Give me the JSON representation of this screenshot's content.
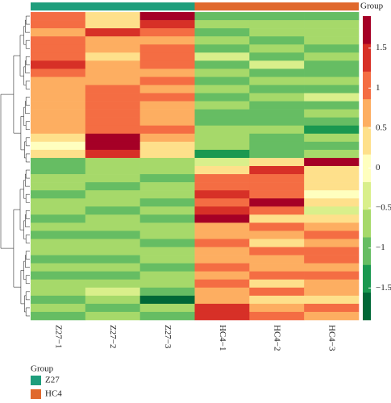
{
  "chart_data": {
    "type": "heatmap",
    "columns": [
      "Z27−1",
      "Z27−2",
      "Z27−3",
      "HC4−1",
      "HC4−2",
      "HC4−3"
    ],
    "values": [
      [
        0.9,
        0.3,
        1.8,
        -0.9,
        -0.9,
        -0.9
      ],
      [
        1.1,
        0.2,
        1.3,
        -0.6,
        -0.7,
        -0.7
      ],
      [
        0.8,
        1.4,
        1.0,
        -1.0,
        -0.6,
        -0.8
      ],
      [
        0.9,
        0.7,
        0.6,
        -0.7,
        -1.0,
        -0.6
      ],
      [
        1.2,
        0.8,
        0.9,
        -0.9,
        -0.8,
        -1.0
      ],
      [
        1.0,
        0.5,
        1.1,
        -0.5,
        -0.9,
        -0.7
      ],
      [
        1.5,
        0.7,
        1.0,
        -0.9,
        -0.5,
        -0.9
      ],
      [
        1.1,
        0.8,
        0.6,
        -0.8,
        -0.9,
        -1.0
      ],
      [
        0.7,
        0.7,
        1.1,
        -1.1,
        -0.7,
        -0.8
      ],
      [
        0.7,
        0.9,
        0.8,
        -0.8,
        -1.0,
        -0.9
      ],
      [
        0.6,
        1.0,
        1.2,
        -0.9,
        -0.8,
        -0.5
      ],
      [
        0.7,
        1.1,
        0.8,
        -0.7,
        -0.9,
        -1.1
      ],
      [
        0.6,
        0.9,
        0.7,
        -0.9,
        -1.0,
        -0.8
      ],
      [
        0.8,
        1.0,
        0.6,
        -1.0,
        -1.1,
        -0.9
      ],
      [
        0.7,
        0.9,
        0.9,
        -0.8,
        -0.8,
        -1.4
      ],
      [
        0.2,
        1.8,
        0.7,
        -0.7,
        -0.9,
        -0.8
      ],
      [
        0.1,
        1.8,
        0.3,
        -0.8,
        -1.0,
        -0.9
      ],
      [
        0.3,
        1.3,
        0.2,
        -1.3,
        -0.9,
        -0.7
      ],
      [
        -0.9,
        -0.8,
        -0.7,
        -0.3,
        0.2,
        1.6
      ],
      [
        -1.0,
        -0.7,
        -0.6,
        0.2,
        1.3,
        0.2
      ],
      [
        -0.8,
        -0.6,
        -0.9,
        1.2,
        0.9,
        0.2
      ],
      [
        -0.7,
        -0.9,
        -0.7,
        1.0,
        1.1,
        0.3
      ],
      [
        -1.0,
        -0.6,
        -0.8,
        1.4,
        1.0,
        0.1
      ],
      [
        -0.6,
        -0.7,
        -1.0,
        1.2,
        1.6,
        0.3
      ],
      [
        -0.8,
        -1.0,
        -0.7,
        1.5,
        1.2,
        -0.3
      ],
      [
        -1.2,
        -0.8,
        -0.9,
        1.7,
        0.2,
        0.4
      ],
      [
        -0.7,
        -0.6,
        -0.6,
        0.8,
        1.0,
        0.6
      ],
      [
        -0.9,
        -0.9,
        -0.8,
        0.7,
        0.7,
        0.9
      ],
      [
        -0.8,
        -0.7,
        -1.0,
        0.9,
        0.5,
        0.8
      ],
      [
        -0.7,
        -0.8,
        -0.7,
        0.6,
        0.9,
        1.2
      ],
      [
        -1.0,
        -0.9,
        -0.8,
        0.8,
        0.6,
        1.0
      ],
      [
        -0.8,
        -0.6,
        -0.9,
        1.0,
        0.8,
        0.7
      ],
      [
        -0.9,
        -1.0,
        -0.7,
        0.7,
        1.0,
        0.9
      ],
      [
        -0.6,
        -0.7,
        -0.8,
        0.9,
        0.3,
        0.6
      ],
      [
        -0.8,
        -0.5,
        -0.9,
        0.6,
        0.9,
        0.8
      ],
      [
        -1.0,
        -0.8,
        -1.6,
        0.8,
        0.5,
        0.5
      ],
      [
        -0.7,
        -0.9,
        -0.8,
        1.4,
        0.7,
        0.9
      ],
      [
        -0.9,
        -0.7,
        -1.0,
        1.5,
        1.0,
        0.6
      ]
    ],
    "zlim": [
      -1.9,
      1.9
    ],
    "zticks": [
      1.5,
      1,
      0.5,
      0,
      {
        "value": -0.5,
        "label": "−0.5"
      },
      {
        "value": -1,
        "label": "−1"
      },
      {
        "value": -1.5,
        "label": "−1.5"
      }
    ],
    "colorscale": [
      "#006837",
      "#1a9850",
      "#66bd63",
      "#a6d96a",
      "#d9ef8b",
      "#ffffbf",
      "#fee08b",
      "#fdae61",
      "#f46d43",
      "#d73027",
      "#a50026"
    ],
    "legend_title": "Group",
    "groups": [
      {
        "name": "Z27",
        "color": "#1f9e7c",
        "span": 3
      },
      {
        "name": "HC4",
        "color": "#e0692e",
        "span": 3
      }
    ]
  }
}
